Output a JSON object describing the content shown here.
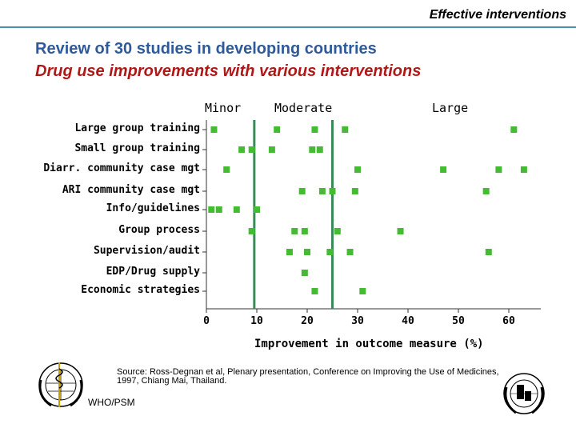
{
  "header": {
    "title": "Effective interventions"
  },
  "slide": {
    "title_line1": "Review of 30 studies in developing countries",
    "title_line2": "Drug use improvements with various interventions"
  },
  "bands": [
    "Minor",
    "Moderate",
    "Large"
  ],
  "footer": {
    "source": "Source: Ross-Degnan et al, Plenary presentation, Conference on Improving the Use of Medicines, 1997, Chiang Mai, Thailand.",
    "org": "WHO/PSM"
  },
  "colors": {
    "accent": "#2e5a9a",
    "subtitle": "#b01818",
    "marker": "#44bb33",
    "threshold": "#3a8a58"
  },
  "chart_data": {
    "type": "scatter",
    "categories": [
      "Large group training",
      "Small group training",
      "Diarr. community case mgt",
      "ARI community case mgt",
      "Info/guidelines",
      "Group process",
      "Supervision/audit",
      "EDP/Drug supply",
      "Economic strategies"
    ],
    "x_ticks": [
      "0",
      "10",
      "20",
      "30",
      "40",
      "50",
      "60"
    ],
    "xlabel": "Improvement in outcome measure (%)",
    "xlim": [
      0,
      65
    ],
    "thresholds": [
      9.5,
      25
    ],
    "points": [
      [
        1.5,
        14,
        21.5,
        27.5,
        61
      ],
      [
        7,
        9,
        13,
        21,
        22.5
      ],
      [
        4,
        30,
        47,
        58,
        63
      ],
      [
        19,
        23,
        25,
        29.5,
        55.5
      ],
      [
        1,
        2.5,
        6,
        10
      ],
      [
        9,
        17.5,
        19.5,
        26,
        38.5
      ],
      [
        16.5,
        20,
        24.5,
        28.5,
        56
      ],
      [
        19.5
      ],
      [
        21.5,
        31
      ]
    ]
  }
}
